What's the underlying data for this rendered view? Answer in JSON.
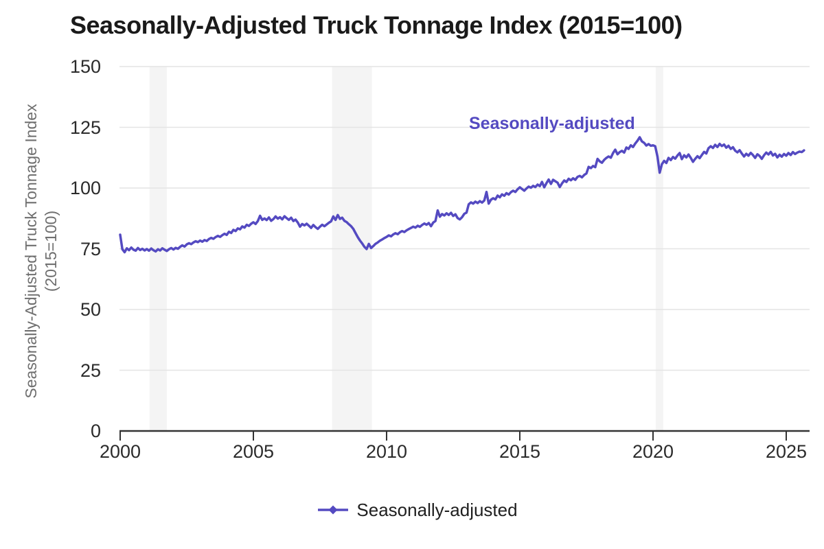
{
  "title": "Seasonally-Adjusted Truck Tonnage Index (2015=100)",
  "y_axis_title_line1": "Seasonally-Adjusted Truck Tonnage Index",
  "y_axis_title_line2": "(2015=100)",
  "annotation": "Seasonally-adjusted",
  "legend": {
    "label": "Seasonally-adjusted",
    "marker": "line-with-diamond"
  },
  "colors": {
    "accent": "#544ac1",
    "axis": "#333333",
    "tick_label": "#2b2b2b",
    "axis_title": "#6f6f6f",
    "gridline": "#e4e4e4",
    "recession_band": "#f4f4f4",
    "title": "#1a1a1a"
  },
  "chart_data": {
    "type": "line",
    "title": "Seasonally-Adjusted Truck Tonnage Index (2015=100)",
    "xlabel": "",
    "ylabel": "Seasonally-Adjusted Truck Tonnage Index (2015=100)",
    "x_ticks": [
      2000,
      2005,
      2010,
      2015,
      2020,
      2025
    ],
    "y_ticks": [
      0,
      25,
      50,
      75,
      100,
      125,
      150
    ],
    "xlim": [
      2000,
      2025.9
    ],
    "ylim": [
      0,
      150
    ],
    "grid": "horizontal",
    "legend_position": "bottom",
    "recession_bands": [
      [
        2001.1,
        2001.75
      ],
      [
        2007.95,
        2009.45
      ],
      [
        2020.1,
        2020.38
      ]
    ],
    "series": [
      {
        "name": "Seasonally-adjusted",
        "start": "2000-01",
        "frequency": "monthly",
        "values": [
          80.8,
          74.8,
          73.6,
          75.2,
          74.4,
          75.5,
          74.6,
          74.2,
          75.3,
          74.5,
          75.0,
          74.3,
          74.9,
          74.2,
          75.1,
          74.4,
          73.9,
          74.8,
          74.3,
          75.2,
          74.6,
          74.1,
          74.8,
          75.3,
          74.7,
          75.4,
          75.0,
          75.8,
          76.4,
          75.9,
          76.8,
          77.3,
          76.9,
          77.6,
          78.1,
          77.7,
          78.4,
          77.9,
          78.6,
          78.2,
          79.0,
          79.5,
          79.1,
          79.8,
          80.3,
          79.9,
          80.6,
          81.2,
          80.7,
          82.0,
          81.5,
          82.8,
          82.3,
          83.4,
          83.0,
          84.2,
          83.7,
          84.9,
          84.4,
          85.3,
          85.9,
          85.2,
          86.4,
          88.6,
          86.9,
          87.5,
          86.8,
          87.9,
          86.5,
          87.2,
          88.3,
          87.4,
          88.0,
          87.1,
          88.4,
          87.6,
          86.9,
          87.8,
          86.4,
          87.0,
          85.8,
          84.1,
          85.2,
          84.6,
          85.3,
          84.5,
          83.6,
          84.8,
          83.9,
          83.2,
          84.1,
          84.9,
          84.3,
          85.0,
          85.7,
          86.3,
          88.3,
          86.9,
          88.9,
          87.3,
          87.8,
          86.5,
          86.0,
          85.1,
          84.3,
          83.2,
          81.5,
          79.8,
          78.4,
          77.2,
          75.8,
          74.9,
          77.0,
          75.3,
          76.1,
          77.0,
          77.6,
          78.3,
          78.8,
          79.4,
          79.9,
          80.5,
          80.1,
          80.9,
          81.4,
          81.0,
          81.8,
          82.3,
          81.9,
          82.6,
          83.1,
          83.6,
          84.1,
          83.7,
          84.5,
          84.0,
          84.8,
          85.4,
          84.9,
          85.6,
          84.3,
          85.8,
          86.4,
          90.8,
          88.2,
          89.3,
          88.7,
          89.6,
          88.9,
          89.8,
          88.5,
          89.2,
          87.6,
          87.1,
          88.0,
          89.4,
          89.9,
          93.3,
          94.1,
          93.6,
          94.4,
          93.8,
          94.6,
          94.0,
          94.9,
          98.4,
          93.6,
          95.2,
          95.8,
          95.3,
          96.9,
          96.2,
          97.4,
          96.8,
          97.9,
          97.3,
          98.3,
          98.9,
          98.4,
          99.5,
          100.3,
          99.6,
          98.9,
          99.8,
          100.6,
          100.1,
          100.9,
          100.4,
          101.4,
          100.8,
          102.5,
          100.3,
          102.0,
          103.5,
          101.7,
          103.4,
          102.8,
          102.2,
          100.4,
          101.9,
          103.1,
          102.5,
          103.8,
          103.2,
          104.0,
          103.4,
          104.6,
          105.0,
          104.4,
          105.4,
          106.0,
          108.7,
          108.2,
          109.1,
          108.6,
          112.0,
          111.0,
          110.4,
          111.6,
          112.4,
          113.0,
          112.5,
          114.4,
          115.8,
          113.9,
          114.8,
          115.3,
          114.6,
          116.7,
          116.1,
          117.6,
          116.9,
          118.3,
          119.5,
          120.9,
          119.2,
          118.6,
          117.5,
          118.1,
          117.4,
          117.6,
          117.2,
          112.9,
          106.3,
          109.8,
          111.2,
          110.3,
          112.4,
          111.5,
          112.8,
          112.1,
          113.4,
          114.4,
          111.9,
          113.5,
          112.6,
          113.8,
          112.4,
          110.8,
          112.0,
          113.1,
          112.3,
          113.6,
          114.9,
          114.2,
          116.4,
          117.2,
          116.5,
          117.8,
          116.9,
          118.2,
          117.3,
          117.9,
          116.6,
          117.4,
          116.1,
          116.8,
          115.4,
          114.7,
          115.6,
          114.2,
          113.0,
          114.1,
          113.3,
          114.5,
          113.6,
          112.4,
          113.9,
          113.2,
          112.0,
          113.5,
          114.6,
          113.8,
          114.9,
          113.4,
          114.1,
          112.6,
          113.7,
          112.9,
          114.0,
          113.3,
          114.4,
          113.6,
          114.8,
          114.0,
          114.6,
          115.0,
          114.8,
          115.5
        ]
      }
    ]
  }
}
